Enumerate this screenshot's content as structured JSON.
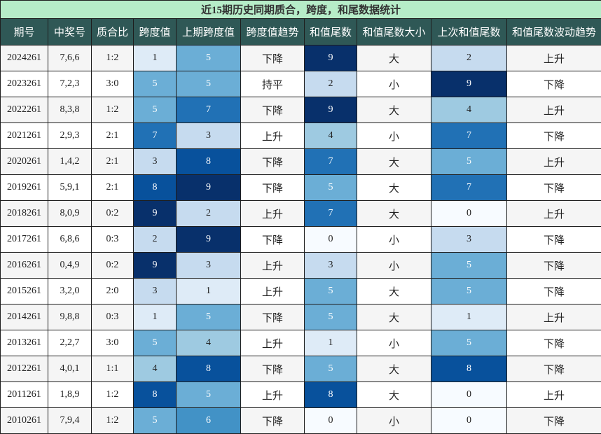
{
  "table": {
    "title": "近15期历史同期质合，跨度，和尾数据统计",
    "headers": [
      "期号",
      "中奖号",
      "质合比",
      "跨度值",
      "上期跨度值",
      "跨度值趋势",
      "和值尾数",
      "和值尾数大小",
      "上次和值尾数",
      "和值尾数波动趋势"
    ],
    "heat_colors": [
      "#f7fbff",
      "#deebf7",
      "#c6dbef",
      "#c6dbef",
      "#9ecae1",
      "#6baed6",
      "#4292c6",
      "#2171b5",
      "#08519c",
      "#08306b"
    ],
    "rows": [
      {
        "issue": "2024261",
        "numbers": "7,6,6",
        "ratio": "1:2",
        "span": "1",
        "prev_span": "5",
        "span_trend": "下降",
        "tail": "9",
        "tail_size": "大",
        "prev_tail": "2",
        "tail_trend": "上升"
      },
      {
        "issue": "2023261",
        "numbers": "7,2,3",
        "ratio": "3:0",
        "span": "5",
        "prev_span": "5",
        "span_trend": "持平",
        "tail": "2",
        "tail_size": "小",
        "prev_tail": "9",
        "tail_trend": "下降"
      },
      {
        "issue": "2022261",
        "numbers": "8,3,8",
        "ratio": "1:2",
        "span": "5",
        "prev_span": "7",
        "span_trend": "下降",
        "tail": "9",
        "tail_size": "大",
        "prev_tail": "4",
        "tail_trend": "上升"
      },
      {
        "issue": "2021261",
        "numbers": "2,9,3",
        "ratio": "2:1",
        "span": "7",
        "prev_span": "3",
        "span_trend": "上升",
        "tail": "4",
        "tail_size": "小",
        "prev_tail": "7",
        "tail_trend": "下降"
      },
      {
        "issue": "2020261",
        "numbers": "1,4,2",
        "ratio": "2:1",
        "span": "3",
        "prev_span": "8",
        "span_trend": "下降",
        "tail": "7",
        "tail_size": "大",
        "prev_tail": "5",
        "tail_trend": "上升"
      },
      {
        "issue": "2019261",
        "numbers": "5,9,1",
        "ratio": "2:1",
        "span": "8",
        "prev_span": "9",
        "span_trend": "下降",
        "tail": "5",
        "tail_size": "大",
        "prev_tail": "7",
        "tail_trend": "下降"
      },
      {
        "issue": "2018261",
        "numbers": "8,0,9",
        "ratio": "0:2",
        "span": "9",
        "prev_span": "2",
        "span_trend": "上升",
        "tail": "7",
        "tail_size": "大",
        "prev_tail": "0",
        "tail_trend": "上升"
      },
      {
        "issue": "2017261",
        "numbers": "6,8,6",
        "ratio": "0:3",
        "span": "2",
        "prev_span": "9",
        "span_trend": "下降",
        "tail": "0",
        "tail_size": "小",
        "prev_tail": "3",
        "tail_trend": "下降"
      },
      {
        "issue": "2016261",
        "numbers": "0,4,9",
        "ratio": "0:2",
        "span": "9",
        "prev_span": "3",
        "span_trend": "上升",
        "tail": "3",
        "tail_size": "小",
        "prev_tail": "5",
        "tail_trend": "下降"
      },
      {
        "issue": "2015261",
        "numbers": "3,2,0",
        "ratio": "2:0",
        "span": "3",
        "prev_span": "1",
        "span_trend": "上升",
        "tail": "5",
        "tail_size": "大",
        "prev_tail": "5",
        "tail_trend": "下降"
      },
      {
        "issue": "2014261",
        "numbers": "9,8,8",
        "ratio": "0:3",
        "span": "1",
        "prev_span": "5",
        "span_trend": "下降",
        "tail": "5",
        "tail_size": "大",
        "prev_tail": "1",
        "tail_trend": "上升"
      },
      {
        "issue": "2013261",
        "numbers": "2,2,7",
        "ratio": "3:0",
        "span": "5",
        "prev_span": "4",
        "span_trend": "上升",
        "tail": "1",
        "tail_size": "小",
        "prev_tail": "5",
        "tail_trend": "下降"
      },
      {
        "issue": "2012261",
        "numbers": "4,0,1",
        "ratio": "1:1",
        "span": "4",
        "prev_span": "8",
        "span_trend": "下降",
        "tail": "5",
        "tail_size": "大",
        "prev_tail": "8",
        "tail_trend": "下降"
      },
      {
        "issue": "2011261",
        "numbers": "1,8,9",
        "ratio": "1:2",
        "span": "8",
        "prev_span": "5",
        "span_trend": "上升",
        "tail": "8",
        "tail_size": "大",
        "prev_tail": "0",
        "tail_trend": "上升"
      },
      {
        "issue": "2010261",
        "numbers": "7,9,4",
        "ratio": "1:2",
        "span": "5",
        "prev_span": "6",
        "span_trend": "下降",
        "tail": "0",
        "tail_size": "小",
        "prev_tail": "0",
        "tail_trend": "下降"
      }
    ]
  }
}
